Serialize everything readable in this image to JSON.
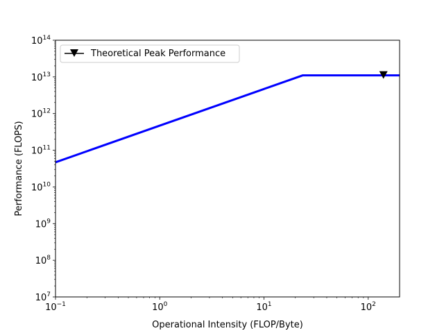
{
  "chart_data": {
    "type": "line",
    "xscale": "log",
    "yscale": "log",
    "xlim": [
      0.1,
      200
    ],
    "ylim": [
      10000000.0,
      100000000000000.0
    ],
    "xlabel": "Operational Intensity (FLOP/Byte)",
    "ylabel": "Performance (FLOPS)",
    "x_ticks": [
      {
        "base": "10",
        "exp": "−1",
        "value": 0.1
      },
      {
        "base": "10",
        "exp": "0",
        "value": 1
      },
      {
        "base": "10",
        "exp": "1",
        "value": 10
      },
      {
        "base": "10",
        "exp": "2",
        "value": 100
      }
    ],
    "y_ticks": [
      {
        "base": "10",
        "exp": "7",
        "value": 10000000.0
      },
      {
        "base": "10",
        "exp": "8",
        "value": 100000000.0
      },
      {
        "base": "10",
        "exp": "9",
        "value": 1000000000.0
      },
      {
        "base": "10",
        "exp": "10",
        "value": 10000000000.0
      },
      {
        "base": "10",
        "exp": "11",
        "value": 100000000000.0
      },
      {
        "base": "10",
        "exp": "12",
        "value": 1000000000000.0
      },
      {
        "base": "10",
        "exp": "13",
        "value": 10000000000000.0
      },
      {
        "base": "10",
        "exp": "14",
        "value": 100000000000000.0
      }
    ],
    "series": [
      {
        "type": "line",
        "color": "#0000ff",
        "x": [
          0.1,
          23.5,
          200
        ],
        "y": [
          47000000000.0,
          11000000000000.0,
          11000000000000.0
        ]
      },
      {
        "name": "Theoretical Peak Performance",
        "type": "marker",
        "marker": "triangle-down",
        "color": "#000000",
        "x": [
          140
        ],
        "y": [
          11000000000000.0
        ]
      }
    ],
    "legend": {
      "placement": "upper-left",
      "entries": [
        "Theoretical Peak Performance"
      ]
    },
    "grid": false
  }
}
